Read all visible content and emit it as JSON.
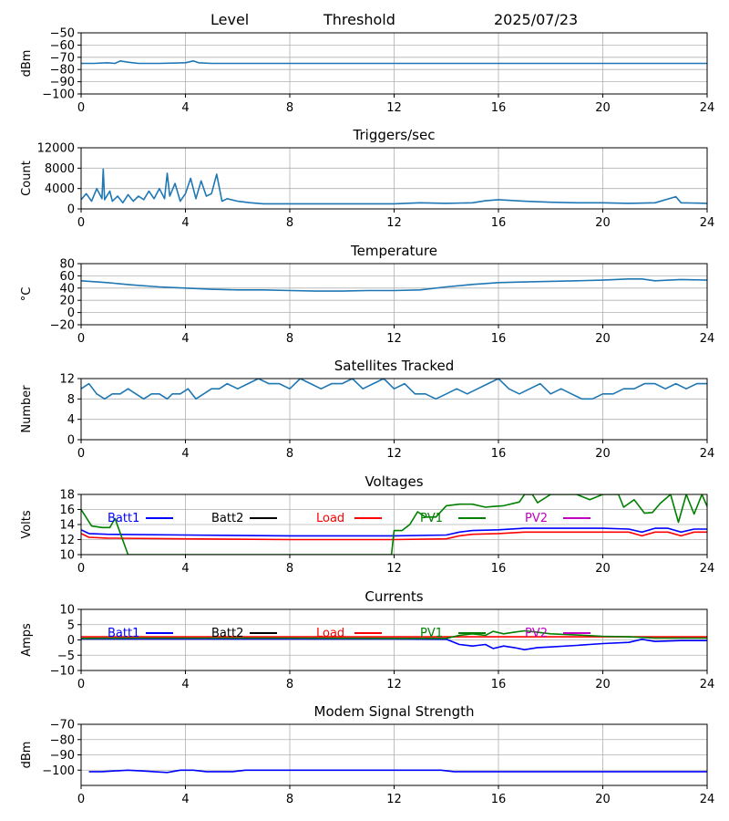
{
  "header": {
    "level": "Level",
    "threshold": "Threshold",
    "date": "2025/07/23"
  },
  "chart_data": [
    {
      "type": "line",
      "title": "",
      "ylabel": "dBm",
      "xlim": [
        0,
        24
      ],
      "ylim": [
        -100,
        -50
      ],
      "xticks": [
        0,
        4,
        8,
        12,
        16,
        20,
        24
      ],
      "yticks": [
        -100,
        -90,
        -80,
        -70,
        -60,
        -50
      ],
      "grid": true,
      "series": [
        {
          "name": "",
          "color": "#1f77b4",
          "x": [
            0,
            0.5,
            1.0,
            1.3,
            1.5,
            1.8,
            2.2,
            3.0,
            4.0,
            4.3,
            4.5,
            5.0,
            6,
            8,
            10,
            12,
            14,
            16,
            18,
            20,
            22,
            24
          ],
          "y": [
            -75,
            -75,
            -74.5,
            -75,
            -73,
            -74,
            -75,
            -75,
            -74.5,
            -73,
            -74.5,
            -75,
            -75,
            -75,
            -75,
            -75,
            -75,
            -75,
            -75,
            -75,
            -75,
            -75
          ]
        }
      ]
    },
    {
      "type": "line",
      "title": "Triggers/sec",
      "ylabel": "Count",
      "xlim": [
        0,
        24
      ],
      "ylim": [
        0,
        12000
      ],
      "xticks": [
        0,
        4,
        8,
        12,
        16,
        20,
        24
      ],
      "yticks": [
        0,
        4000,
        8000,
        12000
      ],
      "grid": true,
      "series": [
        {
          "name": "",
          "color": "#1f77b4",
          "x": [
            0,
            0.2,
            0.4,
            0.6,
            0.8,
            0.85,
            0.9,
            1.1,
            1.2,
            1.4,
            1.6,
            1.8,
            2.0,
            2.2,
            2.4,
            2.6,
            2.8,
            3.0,
            3.2,
            3.3,
            3.4,
            3.6,
            3.8,
            4.0,
            4.2,
            4.4,
            4.6,
            4.8,
            5.0,
            5.2,
            5.4,
            5.6,
            6.0,
            6.5,
            7.0,
            8,
            10,
            12,
            13,
            14,
            15,
            15.5,
            16,
            17,
            18,
            19,
            20,
            21,
            22,
            22.8,
            23,
            24
          ],
          "y": [
            1800,
            3000,
            1500,
            4000,
            2000,
            7800,
            1800,
            3500,
            1500,
            2500,
            1200,
            2800,
            1500,
            2500,
            1800,
            3500,
            2000,
            4000,
            2000,
            7000,
            2500,
            5000,
            1500,
            3000,
            6000,
            2000,
            5500,
            2500,
            3000,
            6800,
            1500,
            2000,
            1500,
            1200,
            1000,
            1000,
            1000,
            1000,
            1200,
            1100,
            1200,
            1600,
            1800,
            1500,
            1300,
            1200,
            1200,
            1100,
            1200,
            2400,
            1200,
            1100
          ]
        }
      ]
    },
    {
      "type": "line",
      "title": "Temperature",
      "ylabel": "°C",
      "xlim": [
        0,
        24
      ],
      "ylim": [
        -20,
        80
      ],
      "xticks": [
        0,
        4,
        8,
        12,
        16,
        20,
        24
      ],
      "yticks": [
        -20,
        0,
        20,
        40,
        60,
        80
      ],
      "grid": true,
      "series": [
        {
          "name": "",
          "color": "#1f77b4",
          "x": [
            0,
            1,
            2,
            3,
            4,
            5,
            6,
            7,
            8,
            9,
            10,
            11,
            12,
            13,
            14,
            15,
            16,
            17,
            18,
            19,
            20,
            21,
            21.5,
            22,
            23,
            24
          ],
          "y": [
            52,
            49,
            45,
            42,
            40,
            38,
            37,
            37,
            36,
            35,
            35,
            36,
            36,
            37,
            42,
            46,
            49,
            50,
            51,
            52,
            53,
            55,
            55,
            52,
            54,
            53
          ]
        }
      ]
    },
    {
      "type": "line",
      "title": "Satellites Tracked",
      "ylabel": "Number",
      "xlim": [
        0,
        24
      ],
      "ylim": [
        0,
        12
      ],
      "xticks": [
        0,
        4,
        8,
        12,
        16,
        20,
        24
      ],
      "yticks": [
        0,
        4,
        8,
        12
      ],
      "grid": true,
      "series": [
        {
          "name": "",
          "color": "#1f77b4",
          "x": [
            0,
            0.3,
            0.6,
            0.9,
            1.2,
            1.5,
            1.8,
            2.1,
            2.4,
            2.7,
            3.0,
            3.3,
            3.5,
            3.8,
            4.1,
            4.4,
            4.7,
            5.0,
            5.3,
            5.6,
            6.0,
            6.4,
            6.8,
            7.2,
            7.6,
            8.0,
            8.4,
            8.8,
            9.2,
            9.6,
            10.0,
            10.4,
            10.8,
            11.2,
            11.6,
            12.0,
            12.4,
            12.8,
            13.2,
            13.6,
            14.0,
            14.4,
            14.8,
            15.2,
            15.6,
            16.0,
            16.4,
            16.8,
            17.2,
            17.6,
            18.0,
            18.4,
            18.8,
            19.2,
            19.6,
            20.0,
            20.4,
            20.8,
            21.2,
            21.6,
            22.0,
            22.4,
            22.8,
            23.2,
            23.6,
            24
          ],
          "y": [
            10,
            11,
            9,
            8,
            9,
            9,
            10,
            9,
            8,
            9,
            9,
            8,
            9,
            9,
            10,
            8,
            9,
            10,
            10,
            11,
            10,
            11,
            12,
            11,
            11,
            10,
            12,
            11,
            10,
            11,
            11,
            12,
            10,
            11,
            12,
            10,
            11,
            9,
            9,
            8,
            9,
            10,
            9,
            10,
            11,
            12,
            10,
            9,
            10,
            11,
            9,
            10,
            9,
            8,
            8,
            9,
            9,
            10,
            10,
            11,
            11,
            10,
            11,
            10,
            11,
            11
          ]
        }
      ]
    },
    {
      "type": "line",
      "title": "Voltages",
      "ylabel": "Volts",
      "xlim": [
        0,
        24
      ],
      "ylim": [
        10,
        18
      ],
      "xticks": [
        0,
        4,
        8,
        12,
        16,
        20,
        24
      ],
      "yticks": [
        10,
        12,
        14,
        16,
        18
      ],
      "grid": true,
      "legend_position": "top",
      "series": [
        {
          "name": "Batt1",
          "color": "#0000ff",
          "x": [
            0,
            0.3,
            1,
            4,
            8,
            12,
            14,
            14.5,
            15,
            16,
            17,
            18,
            20,
            21,
            21.5,
            22,
            22.5,
            23,
            23.5,
            24
          ],
          "y": [
            13.3,
            12.8,
            12.7,
            12.6,
            12.5,
            12.5,
            12.6,
            13.0,
            13.2,
            13.3,
            13.5,
            13.5,
            13.5,
            13.4,
            13.0,
            13.5,
            13.5,
            13.0,
            13.4,
            13.4
          ]
        },
        {
          "name": "Batt2",
          "color": "#000000",
          "x": [],
          "y": []
        },
        {
          "name": "Load",
          "color": "#ff0000",
          "x": [
            0,
            0.3,
            1,
            4,
            8,
            12,
            14,
            14.5,
            15,
            16,
            17,
            18,
            20,
            21,
            21.5,
            22,
            22.5,
            23,
            23.5,
            24
          ],
          "y": [
            12.8,
            12.3,
            12.2,
            12.1,
            12.0,
            12.0,
            12.1,
            12.5,
            12.7,
            12.8,
            13.0,
            13.0,
            13.0,
            13.0,
            12.5,
            13.0,
            13.0,
            12.5,
            13.0,
            13.0
          ]
        },
        {
          "name": "PV1",
          "color": "#008000",
          "x": [
            0,
            0.4,
            0.8,
            1.1,
            1.3,
            1.8,
            11.9,
            12.0,
            12.3,
            12.6,
            12.9,
            13.2,
            13.6,
            14.0,
            14.5,
            15.0,
            15.5,
            15.8,
            16.2,
            16.8,
            17.0,
            17.3,
            17.5,
            18.0,
            19.0,
            19.5,
            20.0,
            20.6,
            20.8,
            21.2,
            21.6,
            21.9,
            22.2,
            22.6,
            22.9,
            23.2,
            23.5,
            23.8,
            24
          ],
          "y": [
            16.0,
            13.8,
            13.6,
            13.6,
            14.8,
            10.0,
            10.0,
            13.2,
            13.2,
            14.0,
            15.7,
            15.0,
            15.0,
            16.5,
            16.7,
            16.7,
            16.3,
            16.4,
            16.5,
            17.0,
            18.0,
            18.0,
            16.9,
            18.0,
            18.0,
            17.3,
            18.0,
            18.0,
            16.3,
            17.3,
            15.5,
            15.6,
            16.8,
            18.0,
            14.3,
            18.0,
            15.4,
            18.0,
            16.4
          ]
        },
        {
          "name": "PV2",
          "color": "#bf00bf",
          "x": [],
          "y": []
        }
      ]
    },
    {
      "type": "line",
      "title": "Currents",
      "ylabel": "Amps",
      "xlim": [
        0,
        24
      ],
      "ylim": [
        -10,
        10
      ],
      "xticks": [
        0,
        4,
        8,
        12,
        16,
        20,
        24
      ],
      "yticks": [
        -10,
        -5,
        0,
        5,
        10
      ],
      "grid": true,
      "legend_position": "top",
      "series": [
        {
          "name": "Batt1",
          "color": "#0000ff",
          "x": [
            0,
            4,
            8,
            12,
            14,
            14.5,
            15,
            15.5,
            15.8,
            16.2,
            16.6,
            17.0,
            17.5,
            18,
            19,
            20,
            21,
            21.5,
            22,
            23,
            24
          ],
          "y": [
            0.3,
            0.3,
            0.3,
            0.3,
            0.2,
            -1.5,
            -2.0,
            -1.5,
            -2.8,
            -2.0,
            -2.5,
            -3.2,
            -2.5,
            -2.3,
            -1.8,
            -1.2,
            -0.8,
            0.2,
            -0.5,
            -0.2,
            -0.2
          ]
        },
        {
          "name": "Batt2",
          "color": "#000000",
          "x": [],
          "y": []
        },
        {
          "name": "Load",
          "color": "#ff0000",
          "x": [
            0,
            4,
            8,
            12,
            16,
            20,
            24
          ],
          "y": [
            1.0,
            1.0,
            1.0,
            1.0,
            1.0,
            1.0,
            1.0
          ]
        },
        {
          "name": "PV1",
          "color": "#008000",
          "x": [
            0,
            2,
            4,
            8,
            12,
            14,
            14.5,
            15,
            15.5,
            15.8,
            16.2,
            16.6,
            17.0,
            17.5,
            18,
            19,
            20,
            21,
            22,
            23,
            24
          ],
          "y": [
            0.5,
            0.6,
            0.6,
            0.6,
            0.5,
            0.5,
            1.5,
            2.0,
            1.5,
            2.8,
            2.0,
            2.5,
            3.0,
            2.5,
            2.0,
            1.6,
            1.2,
            1.0,
            0.6,
            0.6,
            0.6
          ]
        },
        {
          "name": "PV2",
          "color": "#bf00bf",
          "x": [],
          "y": []
        }
      ]
    },
    {
      "type": "line",
      "title": "Modem Signal Strength",
      "ylabel": "dBm",
      "xlim": [
        0,
        24
      ],
      "ylim": [
        -110,
        -70
      ],
      "xticks": [
        0,
        4,
        8,
        12,
        16,
        20,
        24
      ],
      "yticks": [
        -100,
        -90,
        -80,
        -70
      ],
      "grid": true,
      "series": [
        {
          "name": "",
          "color": "#0000ff",
          "x": [
            0.3,
            0.8,
            1.3,
            1.8,
            2.3,
            2.8,
            3.3,
            3.8,
            4.3,
            4.8,
            5.3,
            5.8,
            6.3,
            8,
            10,
            12,
            13.8,
            14.3,
            16,
            18,
            20,
            22,
            24
          ],
          "y": [
            -101,
            -101,
            -100.5,
            -100,
            -100.5,
            -101,
            -101.5,
            -100,
            -100,
            -101,
            -101,
            -101,
            -100,
            -100,
            -100,
            -100,
            -100,
            -101,
            -101,
            -101,
            -101,
            -101,
            -101
          ]
        }
      ]
    }
  ]
}
